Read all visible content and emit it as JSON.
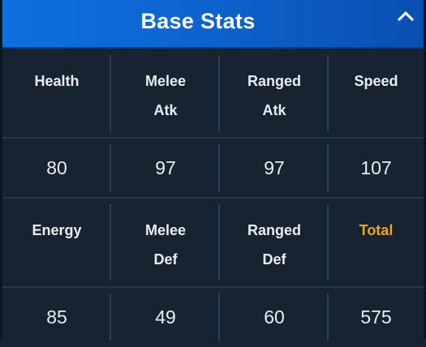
{
  "panel": {
    "title": "Base Stats",
    "collapse_icon": "chevron-up-icon"
  },
  "colors": {
    "header_gradient_start": "#0e6fe0",
    "header_gradient_end": "#0a4fb0",
    "panel_bg": "#172331",
    "text": "#e9edf2",
    "total_accent": "#f0a41e",
    "divider": "#244459"
  },
  "rows": [
    {
      "labels": [
        "Health",
        "Melee\nAtk",
        "Ranged\nAtk",
        "Speed"
      ],
      "values": [
        "80",
        "97",
        "97",
        "107"
      ]
    },
    {
      "labels": [
        "Energy",
        "Melee\nDef",
        "Ranged\nDef",
        "Total"
      ],
      "values": [
        "85",
        "49",
        "60",
        "575"
      ]
    }
  ]
}
